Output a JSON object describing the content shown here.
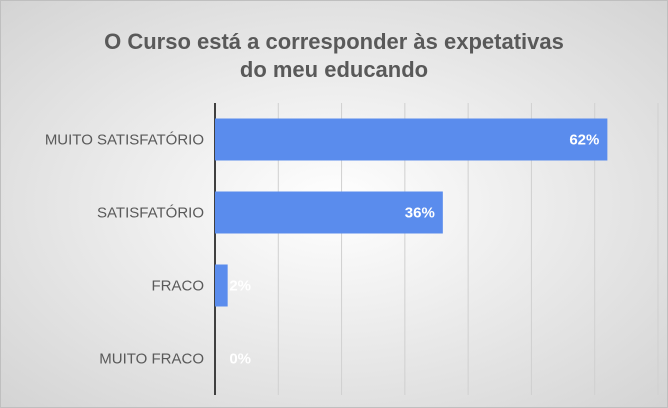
{
  "chart_data": {
    "type": "hbar",
    "title": [
      "O Curso está a corresponder às expetativas",
      "do meu educando"
    ],
    "categories": [
      "MUITO SATISFATÓRIO",
      "SATISFATÓRIO",
      "FRACO",
      "MUITO FRACO"
    ],
    "values": [
      62,
      36,
      2,
      0
    ],
    "value_labels": [
      "62%",
      "36%",
      "2%",
      "0%"
    ],
    "color": "#5a8ced",
    "xlim": [
      0,
      70
    ],
    "xticks": [
      0,
      10,
      20,
      30,
      40,
      50,
      60,
      70
    ],
    "grid": true
  }
}
